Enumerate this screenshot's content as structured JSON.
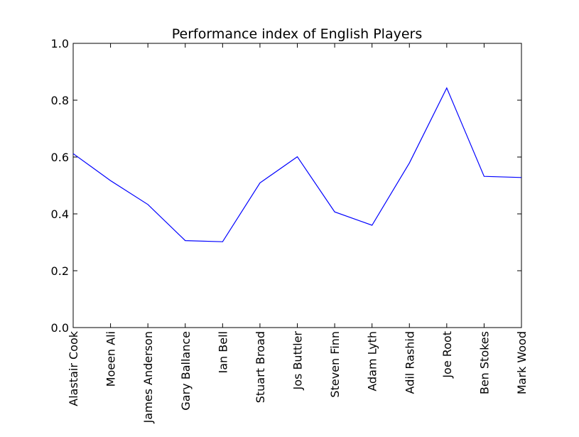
{
  "chart_data": {
    "type": "line",
    "title": "Performance index of English Players",
    "xlabel": "",
    "ylabel": "",
    "categories": [
      "Alastair Cook",
      "Moeen Ali",
      "James Anderson",
      "Gary Ballance",
      "Ian Bell",
      "Stuart Broad",
      "Jos Buttler",
      "Steven Finn",
      "Adam Lyth",
      "Adil Rashid",
      "Joe Root",
      "Ben Stokes",
      "Mark Wood"
    ],
    "series": [
      {
        "values": [
          0.612,
          0.517,
          0.433,
          0.306,
          0.302,
          0.509,
          0.601,
          0.407,
          0.36,
          0.579,
          0.843,
          0.532,
          0.528
        ]
      }
    ],
    "ylim": [
      0.0,
      1.0
    ],
    "yticks": [
      "0.0",
      "0.2",
      "0.4",
      "0.6",
      "0.8",
      "1.0"
    ],
    "grid": false,
    "line_color": "#0000ff"
  }
}
